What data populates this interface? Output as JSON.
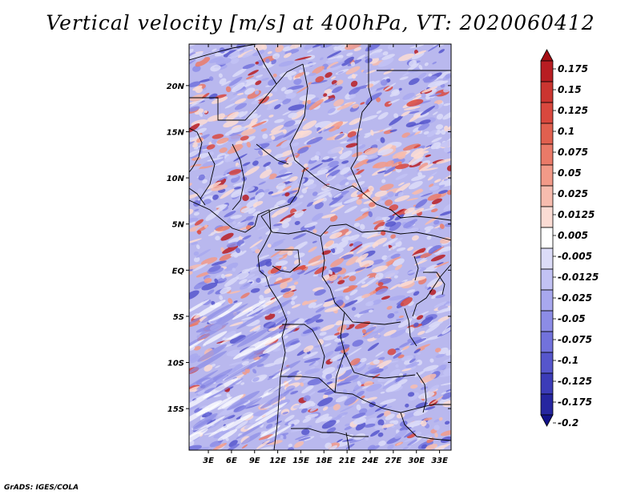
{
  "title": "Vertical velocity [m/s] at 400hPa, VT: 2020060412",
  "credit": "GrADS: IGES/COLA",
  "map": {
    "lon_labels": [
      "3E",
      "6E",
      "9E",
      "12E",
      "15E",
      "18E",
      "21E",
      "24E",
      "27E",
      "30E",
      "33E"
    ],
    "lon_values": [
      3,
      6,
      9,
      12,
      15,
      18,
      21,
      24,
      27,
      30,
      33
    ],
    "lon_range": [
      0.5,
      34.5
    ],
    "lat_labels": [
      "20N",
      "15N",
      "10N",
      "5N",
      "EQ",
      "5S",
      "10S",
      "15S"
    ],
    "lat_values": [
      20,
      15,
      10,
      5,
      0,
      -5,
      -10,
      -15
    ],
    "lat_range": [
      -19.5,
      24.5
    ]
  },
  "colorbar": {
    "labels": [
      "0.175",
      "0.15",
      "0.125",
      "0.1",
      "0.075",
      "0.05",
      "0.025",
      "0.0125",
      "0.005",
      "-0.005",
      "-0.0125",
      "-0.025",
      "-0.05",
      "-0.075",
      "-0.1",
      "-0.125",
      "-0.175",
      "-0.2"
    ],
    "colors": [
      "#a50f15",
      "#b81d22",
      "#cb3530",
      "#d9483e",
      "#e1604f",
      "#ea7a68",
      "#f29a88",
      "#f7bcae",
      "#fbdcd4",
      "#ffffff",
      "#dcdcf8",
      "#c2c2f4",
      "#a8a8ee",
      "#8c8ce6",
      "#7272dc",
      "#5656cc",
      "#3c3cb8",
      "#2626a0",
      "#12128a"
    ]
  }
}
